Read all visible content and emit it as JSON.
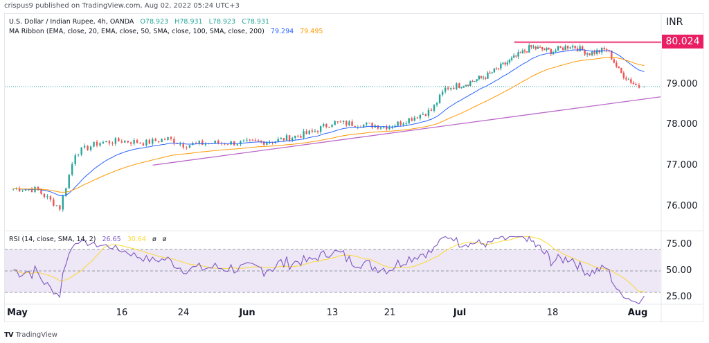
{
  "header": {
    "publisher": "crispus9 published on TradingView.com, Aug 02, 2022 05:24 UTC+3"
  },
  "legend_main": {
    "symbol": "U.S. Dollar / Indian Rupee, 4h, OANDA",
    "open": "O78.923",
    "high": "H78.931",
    "low": "L78.923",
    "close": "C78.931",
    "ma_label": "MA Ribbon (EMA, close, 20, EMA, close, 50, SMA, close, 100, SMA, close, 200)",
    "ma1_value": "79.294",
    "ma2_value": "79.495"
  },
  "legend_rsi": {
    "label": "RSI (14, close, SMA, 14, 2)",
    "rsi_value": "26.65",
    "sma_value": "30.64",
    "na1": "ø",
    "na2": "ø"
  },
  "price_axis": {
    "currency": "INR",
    "ticks": [
      "79.000",
      "78.000",
      "77.000",
      "76.000"
    ],
    "resistance_label": "80.024"
  },
  "rsi_axis": {
    "ticks": [
      "75.00",
      "50.00",
      "25.00"
    ]
  },
  "time_axis": {
    "labels": [
      {
        "text": "May",
        "bold": true
      },
      {
        "text": "16",
        "bold": false
      },
      {
        "text": "24",
        "bold": false
      },
      {
        "text": "Jun",
        "bold": true
      },
      {
        "text": "13",
        "bold": false
      },
      {
        "text": "21",
        "bold": false
      },
      {
        "text": "Jul",
        "bold": true
      },
      {
        "text": "18",
        "bold": false
      },
      {
        "text": "Aug",
        "bold": true
      }
    ]
  },
  "footer": {
    "brand": "TradingView",
    "logo": "TV"
  },
  "colors": {
    "up": "#26a69a",
    "down": "#ef5350",
    "ema20": "#2962ff",
    "ema50": "#ff9800",
    "trendline": "#ba68c8",
    "resistance": "#e91e63",
    "rsi": "#7e57c2",
    "rsi_sma": "#fdd835",
    "rsi_band": "#ede7f6"
  },
  "chart_data": {
    "type": "candlestick",
    "title": "U.S. Dollar / Indian Rupee, 4h, OANDA",
    "xlabel": "",
    "ylabel": "INR",
    "ylim": [
      75.6,
      80.35
    ],
    "x_range": [
      "May 2022",
      "Aug 02 2022"
    ],
    "price_path_keypoints": [
      {
        "date": "May 02",
        "close": 76.42
      },
      {
        "date": "May 05",
        "close": 76.4
      },
      {
        "date": "May 08",
        "close": 75.95
      },
      {
        "date": "May 10",
        "close": 77.3
      },
      {
        "date": "May 13",
        "close": 77.55
      },
      {
        "date": "May 16",
        "close": 77.6
      },
      {
        "date": "May 19",
        "close": 77.55
      },
      {
        "date": "May 22",
        "close": 77.65
      },
      {
        "date": "May 24",
        "close": 77.5
      },
      {
        "date": "May 28",
        "close": 77.55
      },
      {
        "date": "Jun 01",
        "close": 77.55
      },
      {
        "date": "Jun 05",
        "close": 77.6
      },
      {
        "date": "Jun 10",
        "close": 77.8
      },
      {
        "date": "Jun 13",
        "close": 78.05
      },
      {
        "date": "Jun 17",
        "close": 78.0
      },
      {
        "date": "Jun 21",
        "close": 77.95
      },
      {
        "date": "Jun 24",
        "close": 78.15
      },
      {
        "date": "Jun 27",
        "close": 78.35
      },
      {
        "date": "Jun 29",
        "close": 78.9
      },
      {
        "date": "Jul 02",
        "close": 79.0
      },
      {
        "date": "Jul 06",
        "close": 79.2
      },
      {
        "date": "Jul 10",
        "close": 79.55
      },
      {
        "date": "Jul 14",
        "close": 79.9
      },
      {
        "date": "Jul 18",
        "close": 79.8
      },
      {
        "date": "Jul 21",
        "close": 79.95
      },
      {
        "date": "Jul 24",
        "close": 79.75
      },
      {
        "date": "Jul 27",
        "close": 79.85
      },
      {
        "date": "Jul 29",
        "close": 79.3
      },
      {
        "date": "Aug 01",
        "close": 78.93
      }
    ],
    "series": [
      {
        "name": "EMA 20",
        "last": 79.294
      },
      {
        "name": "EMA 50",
        "last": 79.495
      }
    ],
    "last_price": 78.931,
    "resistance_level": 80.024,
    "trendline": {
      "start": {
        "date": "May 20",
        "value": 77.0
      },
      "end": {
        "date": "Aug 02",
        "value": 78.68
      }
    },
    "rsi": {
      "ylim": [
        18,
        82
      ],
      "levels": [
        70,
        50,
        30
      ],
      "tick_labels": [
        "75.00",
        "50.00",
        "25.00"
      ],
      "last_rsi": 26.65,
      "last_sma": 30.64
    }
  }
}
